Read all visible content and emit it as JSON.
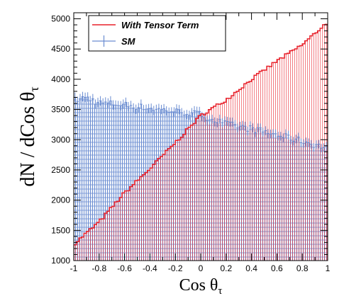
{
  "chart_data": {
    "type": "histogram",
    "xlabel": "Cos θ",
    "xlabel_sub": "τ",
    "ylabel": "dN / dCos θ",
    "ylabel_sub": "τ",
    "xlim": [
      -1,
      1
    ],
    "ylim": [
      1000,
      5100
    ],
    "xticks": [
      -1,
      -0.8,
      -0.6,
      -0.4,
      -0.2,
      0,
      0.2,
      0.4,
      0.6,
      0.8,
      1
    ],
    "xtick_labels": [
      "-1",
      "-0.8",
      "-0.6",
      "-0.4",
      "-0.2",
      "0",
      "0.2",
      "0.4",
      "0.6",
      "0.8",
      "1"
    ],
    "yticks": [
      1000,
      1500,
      2000,
      2500,
      3000,
      3500,
      4000,
      4500,
      5000
    ],
    "ytick_labels": [
      "1000",
      "1500",
      "2000",
      "2500",
      "3000",
      "3500",
      "4000",
      "4500",
      "5000"
    ],
    "grid": false,
    "legend_position": "top-left",
    "series": [
      {
        "name": "With Tensor Term",
        "style": "step",
        "color": "#e8202a",
        "fill_pattern": "vertical-hatch",
        "bins": 100,
        "anchors_x": [
          -1.0,
          -0.8,
          -0.6,
          -0.4,
          -0.2,
          0.0,
          0.2,
          0.4,
          0.6,
          0.8,
          1.0
        ],
        "anchors_y": [
          1270,
          1640,
          2120,
          2520,
          2950,
          3400,
          3660,
          4000,
          4300,
          4570,
          4950
        ]
      },
      {
        "name": "SM",
        "style": "errorbar",
        "color": "#6a8cd1",
        "fill_pattern": "cross-hatch",
        "bins": 100,
        "anchors_x": [
          -1.0,
          -0.9,
          -0.8,
          -0.6,
          -0.4,
          -0.2,
          0.0,
          0.1,
          0.2,
          0.4,
          0.6,
          0.8,
          1.0
        ],
        "anchors_y": [
          3650,
          3700,
          3610,
          3580,
          3520,
          3470,
          3420,
          3330,
          3260,
          3180,
          3080,
          2980,
          2860
        ]
      }
    ]
  }
}
